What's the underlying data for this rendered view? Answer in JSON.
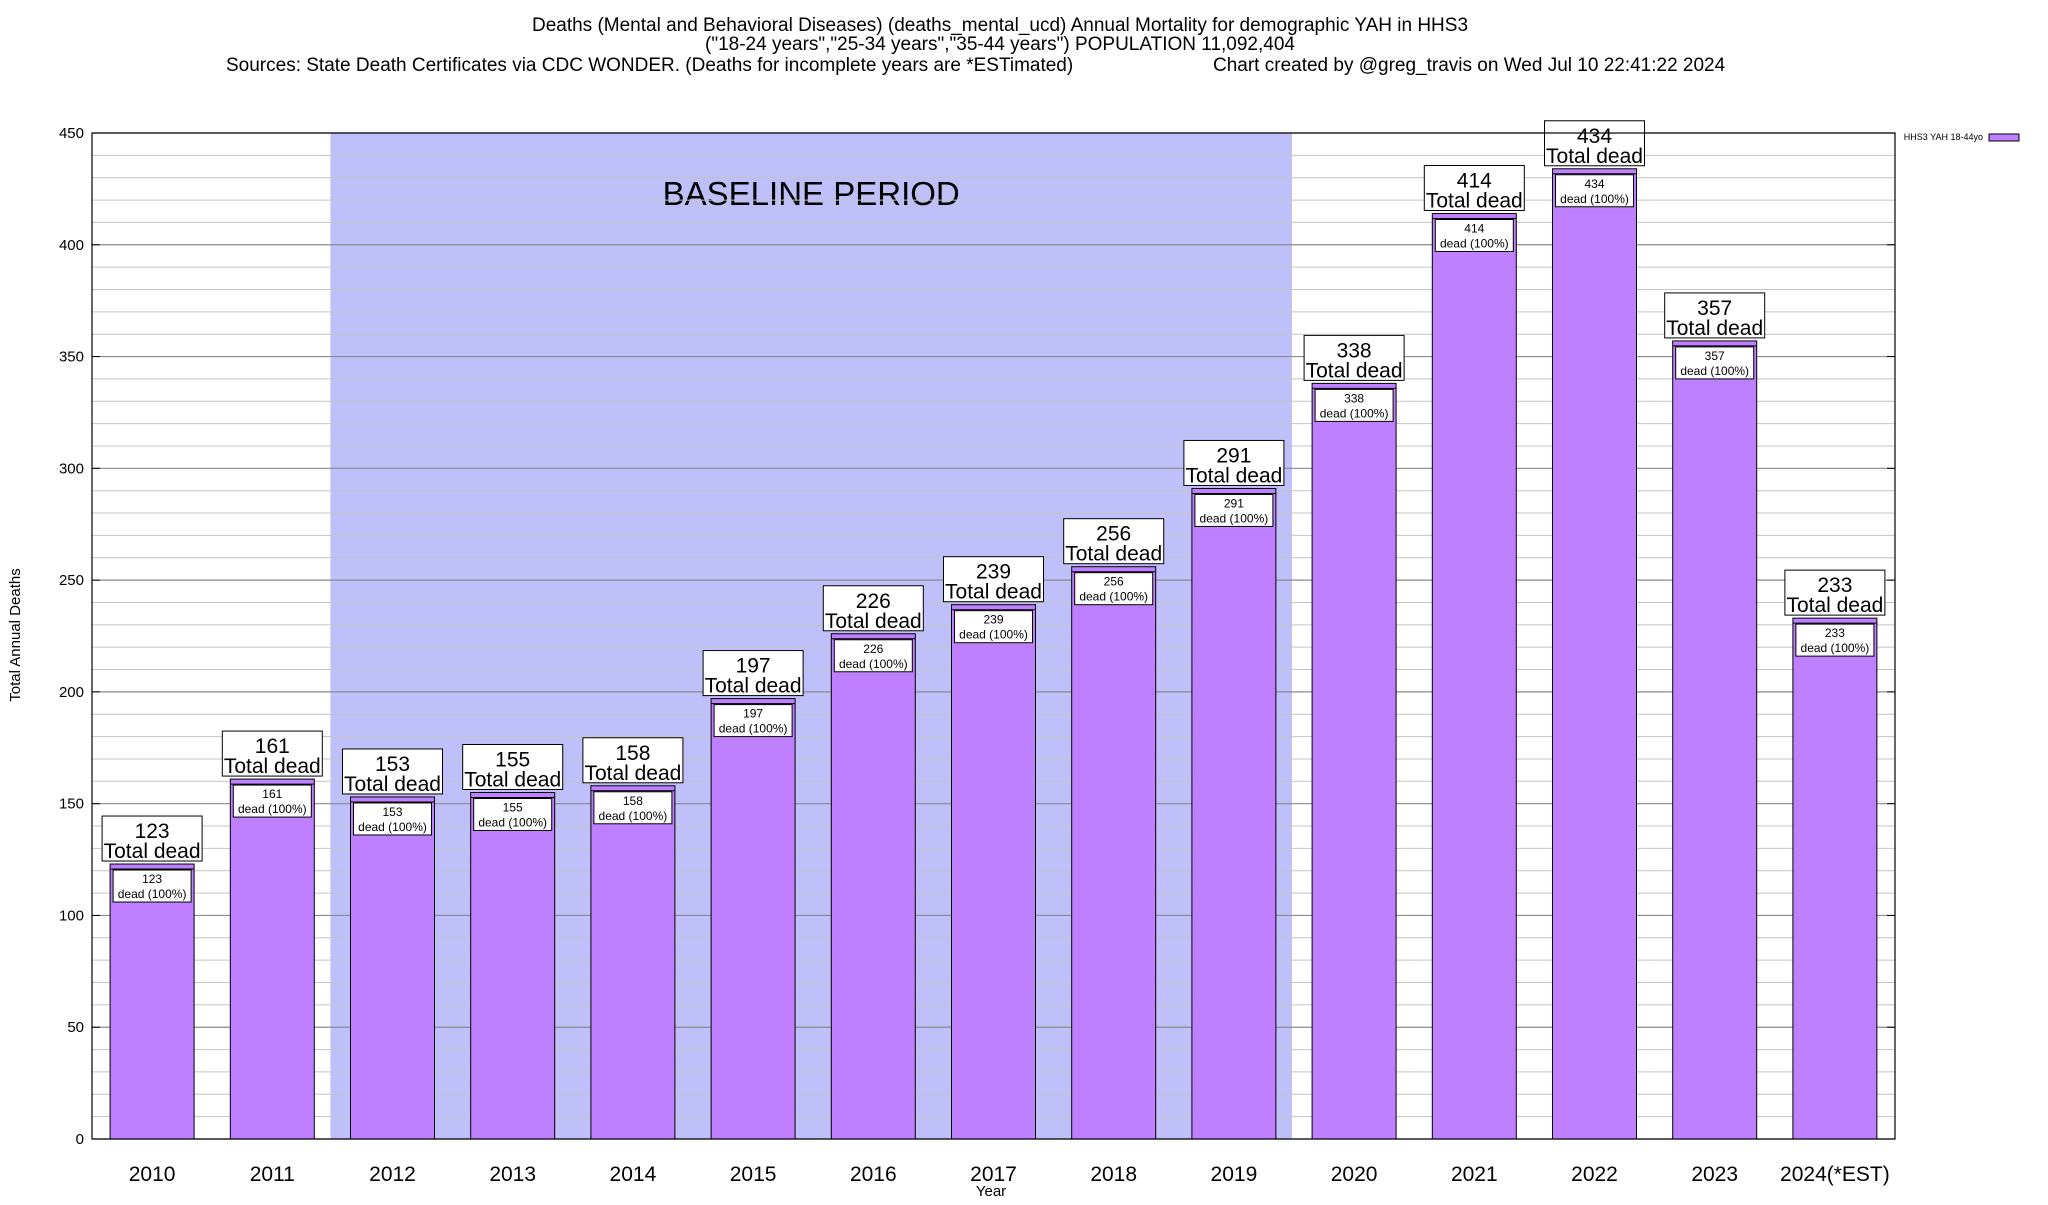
{
  "chart_data": {
    "type": "bar",
    "title_lines": [
      "Deaths (Mental and Behavioral Diseases) (deaths_mental_ucd) Annual Mortality for demographic YAH in HHS3",
      "(\"18-24 years\",\"25-34 years\",\"35-44 years\") POPULATION 11,092,404",
      "Sources: State Death Certificates via CDC WONDER. (Deaths for incomplete years are *ESTimated)",
      "Chart created by @greg_travis on Wed Jul 10 22:41:22 2024"
    ],
    "xlabel": "Year",
    "ylabel": "Total Annual Deaths",
    "ylim": [
      0,
      450
    ],
    "y_ticks": [
      0,
      50,
      100,
      150,
      200,
      250,
      300,
      350,
      400,
      450
    ],
    "grid": true,
    "categories": [
      "2010",
      "2011",
      "2012",
      "2013",
      "2014",
      "2015",
      "2016",
      "2017",
      "2018",
      "2019",
      "2020",
      "2021",
      "2022",
      "2023",
      "2024(*EST)"
    ],
    "series": [
      {
        "name": "HHS3 YAH 18-44yo",
        "color": "#bf80ff",
        "values": [
          123,
          161,
          153,
          155,
          158,
          197,
          226,
          239,
          256,
          291,
          338,
          414,
          434,
          357,
          233
        ]
      }
    ],
    "total_label": "Total dead",
    "segment_label": "dead (100%)",
    "baseline_period": {
      "label": "BASELINE PERIOD",
      "start_category": "2012",
      "end_category": "2019",
      "color": "#bfbffa"
    },
    "legend_position": "top-right"
  }
}
